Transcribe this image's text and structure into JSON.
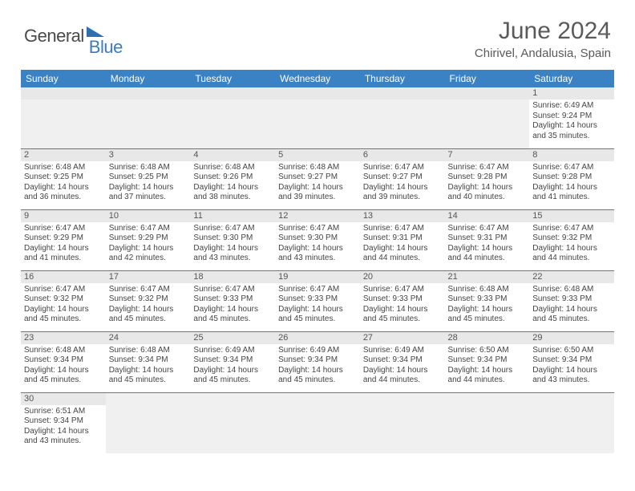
{
  "logo": {
    "text1": "General",
    "text2": "Blue",
    "triangle_color": "#2f6fb0"
  },
  "header": {
    "title": "June 2024",
    "location": "Chirivel, Andalusia, Spain"
  },
  "calendar": {
    "day_headers": [
      "Sunday",
      "Monday",
      "Tuesday",
      "Wednesday",
      "Thursday",
      "Friday",
      "Saturday"
    ],
    "header_bg": "#3a82c4",
    "header_fg": "#ffffff",
    "daynum_bg": "#e8e8e8",
    "border_color": "#3a82c4",
    "first_weekday_index": 6,
    "days": [
      {
        "n": 1,
        "sunrise": "6:49 AM",
        "sunset": "9:24 PM",
        "dl_h": 14,
        "dl_m": 35
      },
      {
        "n": 2,
        "sunrise": "6:48 AM",
        "sunset": "9:25 PM",
        "dl_h": 14,
        "dl_m": 36
      },
      {
        "n": 3,
        "sunrise": "6:48 AM",
        "sunset": "9:25 PM",
        "dl_h": 14,
        "dl_m": 37
      },
      {
        "n": 4,
        "sunrise": "6:48 AM",
        "sunset": "9:26 PM",
        "dl_h": 14,
        "dl_m": 38
      },
      {
        "n": 5,
        "sunrise": "6:48 AM",
        "sunset": "9:27 PM",
        "dl_h": 14,
        "dl_m": 39
      },
      {
        "n": 6,
        "sunrise": "6:47 AM",
        "sunset": "9:27 PM",
        "dl_h": 14,
        "dl_m": 39
      },
      {
        "n": 7,
        "sunrise": "6:47 AM",
        "sunset": "9:28 PM",
        "dl_h": 14,
        "dl_m": 40
      },
      {
        "n": 8,
        "sunrise": "6:47 AM",
        "sunset": "9:28 PM",
        "dl_h": 14,
        "dl_m": 41
      },
      {
        "n": 9,
        "sunrise": "6:47 AM",
        "sunset": "9:29 PM",
        "dl_h": 14,
        "dl_m": 41
      },
      {
        "n": 10,
        "sunrise": "6:47 AM",
        "sunset": "9:29 PM",
        "dl_h": 14,
        "dl_m": 42
      },
      {
        "n": 11,
        "sunrise": "6:47 AM",
        "sunset": "9:30 PM",
        "dl_h": 14,
        "dl_m": 43
      },
      {
        "n": 12,
        "sunrise": "6:47 AM",
        "sunset": "9:30 PM",
        "dl_h": 14,
        "dl_m": 43
      },
      {
        "n": 13,
        "sunrise": "6:47 AM",
        "sunset": "9:31 PM",
        "dl_h": 14,
        "dl_m": 44
      },
      {
        "n": 14,
        "sunrise": "6:47 AM",
        "sunset": "9:31 PM",
        "dl_h": 14,
        "dl_m": 44
      },
      {
        "n": 15,
        "sunrise": "6:47 AM",
        "sunset": "9:32 PM",
        "dl_h": 14,
        "dl_m": 44
      },
      {
        "n": 16,
        "sunrise": "6:47 AM",
        "sunset": "9:32 PM",
        "dl_h": 14,
        "dl_m": 45
      },
      {
        "n": 17,
        "sunrise": "6:47 AM",
        "sunset": "9:32 PM",
        "dl_h": 14,
        "dl_m": 45
      },
      {
        "n": 18,
        "sunrise": "6:47 AM",
        "sunset": "9:33 PM",
        "dl_h": 14,
        "dl_m": 45
      },
      {
        "n": 19,
        "sunrise": "6:47 AM",
        "sunset": "9:33 PM",
        "dl_h": 14,
        "dl_m": 45
      },
      {
        "n": 20,
        "sunrise": "6:47 AM",
        "sunset": "9:33 PM",
        "dl_h": 14,
        "dl_m": 45
      },
      {
        "n": 21,
        "sunrise": "6:48 AM",
        "sunset": "9:33 PM",
        "dl_h": 14,
        "dl_m": 45
      },
      {
        "n": 22,
        "sunrise": "6:48 AM",
        "sunset": "9:33 PM",
        "dl_h": 14,
        "dl_m": 45
      },
      {
        "n": 23,
        "sunrise": "6:48 AM",
        "sunset": "9:34 PM",
        "dl_h": 14,
        "dl_m": 45
      },
      {
        "n": 24,
        "sunrise": "6:48 AM",
        "sunset": "9:34 PM",
        "dl_h": 14,
        "dl_m": 45
      },
      {
        "n": 25,
        "sunrise": "6:49 AM",
        "sunset": "9:34 PM",
        "dl_h": 14,
        "dl_m": 45
      },
      {
        "n": 26,
        "sunrise": "6:49 AM",
        "sunset": "9:34 PM",
        "dl_h": 14,
        "dl_m": 45
      },
      {
        "n": 27,
        "sunrise": "6:49 AM",
        "sunset": "9:34 PM",
        "dl_h": 14,
        "dl_m": 44
      },
      {
        "n": 28,
        "sunrise": "6:50 AM",
        "sunset": "9:34 PM",
        "dl_h": 14,
        "dl_m": 44
      },
      {
        "n": 29,
        "sunrise": "6:50 AM",
        "sunset": "9:34 PM",
        "dl_h": 14,
        "dl_m": 43
      },
      {
        "n": 30,
        "sunrise": "6:51 AM",
        "sunset": "9:34 PM",
        "dl_h": 14,
        "dl_m": 43
      }
    ],
    "labels": {
      "sunrise": "Sunrise:",
      "sunset": "Sunset:",
      "daylight_prefix": "Daylight:",
      "hours_word": "hours",
      "and_word": "and",
      "minutes_word": "minutes."
    }
  }
}
